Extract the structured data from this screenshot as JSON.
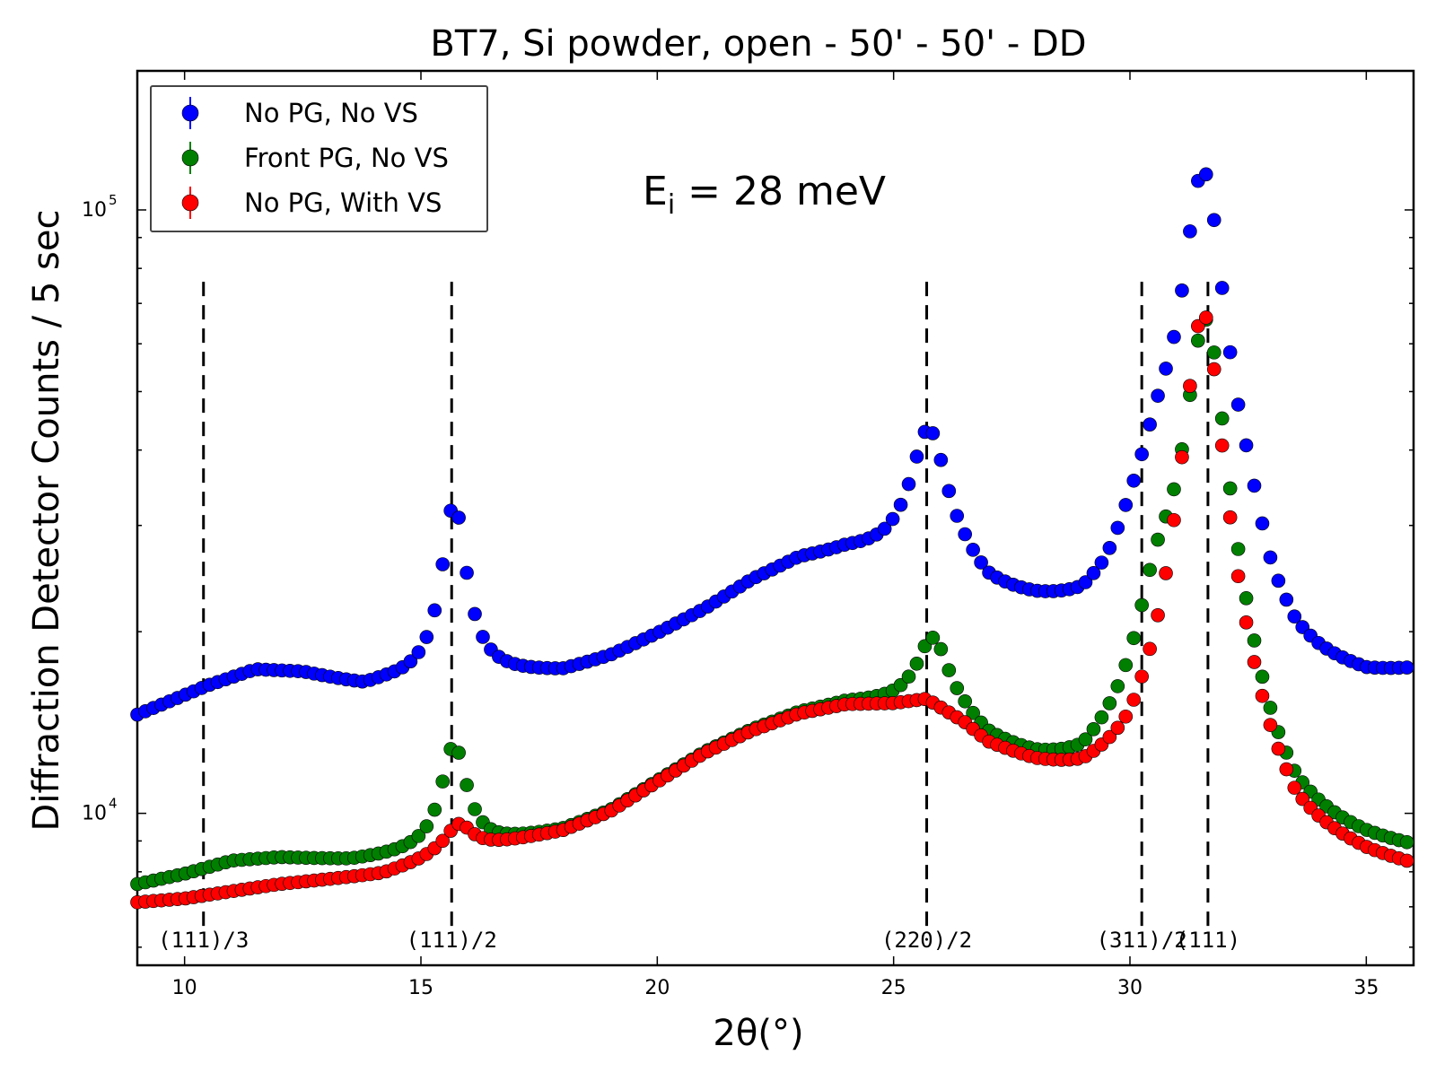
{
  "chart_data": {
    "type": "scatter",
    "title": "BT7, Si powder, open - 50' - 50' - DD",
    "xlabel": "2θ(°)",
    "ylabel": "Diffraction Detector Counts / 5 sec",
    "xlim": [
      9,
      36
    ],
    "ylim": [
      5600,
      170000
    ],
    "yscale": "log",
    "x_ticks": [
      10,
      15,
      20,
      25,
      30,
      35
    ],
    "y_ticks": [
      {
        "value": 10000,
        "base": "10",
        "exp": "4"
      },
      {
        "value": 100000,
        "base": "10",
        "exp": "5"
      }
    ],
    "legend": {
      "placement": "top-left",
      "entries": [
        {
          "name": "No PG, No VS",
          "color": "#0000ff"
        },
        {
          "name": "Front PG, No VS",
          "color": "#007f00"
        },
        {
          "name": "No PG, With VS",
          "color": "#ff0000"
        }
      ]
    },
    "annotation": {
      "text": "E",
      "sub": "i",
      "rest": " = 28 meV"
    },
    "reference_lines": [
      {
        "x": 10.4,
        "label": "(111)/3"
      },
      {
        "x": 15.65,
        "label": "(111)/2"
      },
      {
        "x": 25.7,
        "label": "(220)/2"
      },
      {
        "x": 30.25,
        "label": "(311)/2"
      },
      {
        "x": 31.65,
        "label": "(111)"
      }
    ],
    "series_model": {
      "x_start": 9,
      "x_end": 36,
      "x_step": 0.17,
      "series": [
        {
          "name": "No PG, No VS",
          "color": "#0000ff",
          "baseline": [
            [
              9,
              14500
            ],
            [
              10.5,
              16200
            ],
            [
              11.5,
              17200
            ],
            [
              12.5,
              17000
            ],
            [
              13.8,
              16100
            ],
            [
              14.2,
              16300
            ],
            [
              16.8,
              16800
            ],
            [
              18,
              17000
            ],
            [
              19,
              18000
            ],
            [
              20,
              19600
            ],
            [
              21,
              21500
            ],
            [
              22,
              24000
            ],
            [
              23,
              26000
            ],
            [
              24,
              26700
            ],
            [
              24.8,
              26500
            ],
            [
              25.7,
              27000
            ],
            [
              26.5,
              24500
            ],
            [
              27,
              22500
            ],
            [
              28,
              21200
            ],
            [
              29,
              20300
            ],
            [
              29.5,
              21200
            ],
            [
              30,
              24000
            ],
            [
              30.8,
              26000
            ],
            [
              32.5,
              23000
            ],
            [
              33,
              18000
            ],
            [
              33.5,
              16400
            ],
            [
              34,
              16100
            ],
            [
              35,
              15900
            ],
            [
              36,
              16500
            ]
          ],
          "peaks": [
            [
              15.7,
              16000,
              0.28
            ],
            [
              25.75,
              16000,
              0.42
            ],
            [
              30.6,
              8000,
              0.5
            ],
            [
              31.55,
              90000,
              0.44
            ]
          ]
        },
        {
          "name": "Front PG, No VS",
          "color": "#007f00",
          "baseline": [
            [
              9,
              7600
            ],
            [
              10,
              7900
            ],
            [
              11,
              8300
            ],
            [
              12,
              8400
            ],
            [
              13.5,
              8300
            ],
            [
              14.2,
              8400
            ],
            [
              16.5,
              8800
            ],
            [
              18,
              9300
            ],
            [
              19,
              10000
            ],
            [
              20,
              11200
            ],
            [
              21,
              12500
            ],
            [
              22,
              13600
            ],
            [
              23,
              14500
            ],
            [
              24,
              15000
            ],
            [
              25,
              15000
            ],
            [
              25.7,
              15200
            ],
            [
              26.5,
              13800
            ],
            [
              27,
              12700
            ],
            [
              28,
              11600
            ],
            [
              29,
              10900
            ],
            [
              30,
              11800
            ],
            [
              31,
              13500
            ],
            [
              32.5,
              11000
            ],
            [
              33,
              9500
            ],
            [
              33.5,
              8700
            ],
            [
              35,
              8400
            ],
            [
              36,
              8300
            ]
          ],
          "peaks": [
            [
              15.7,
              4300,
              0.3
            ],
            [
              25.85,
              4200,
              0.38
            ],
            [
              30.6,
              7000,
              0.5
            ],
            [
              31.6,
              52000,
              0.45
            ]
          ]
        },
        {
          "name": "No PG, With VS",
          "color": "#ff0000",
          "baseline": [
            [
              9,
              7100
            ],
            [
              10,
              7200
            ],
            [
              11,
              7400
            ],
            [
              12,
              7600
            ],
            [
              13.5,
              7800
            ],
            [
              14.2,
              7900
            ],
            [
              15.3,
              8400
            ],
            [
              16.5,
              8800
            ],
            [
              18,
              9300
            ],
            [
              19,
              10000
            ],
            [
              20,
              11200
            ],
            [
              21,
              12500
            ],
            [
              22,
              13600
            ],
            [
              23,
              14500
            ],
            [
              24,
              15000
            ],
            [
              25,
              15000
            ],
            [
              25.7,
              15200
            ],
            [
              26.5,
              13800
            ],
            [
              27,
              12700
            ],
            [
              28,
              11600
            ],
            [
              29,
              10900
            ],
            [
              30,
              11100
            ],
            [
              31,
              13500
            ],
            [
              32.5,
              11000
            ],
            [
              33,
              9500
            ],
            [
              33.5,
              8500
            ],
            [
              35,
              8000
            ],
            [
              36,
              7800
            ]
          ],
          "peaks": [
            [
              15.8,
              1000,
              0.35
            ],
            [
              31.55,
              55000,
              0.42
            ]
          ]
        }
      ]
    }
  }
}
